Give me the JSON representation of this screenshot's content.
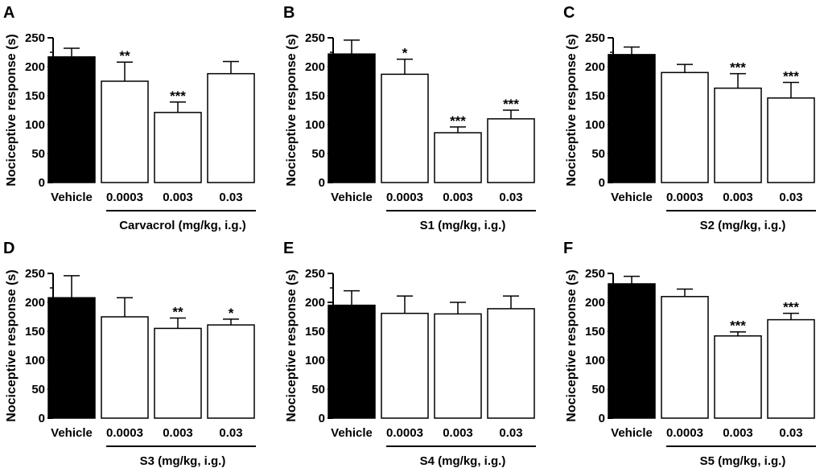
{
  "chart_data": [
    {
      "panel": "A",
      "type": "bar",
      "ylabel": "Nociceptive response (s)",
      "ylim": [
        0,
        250
      ],
      "yticks": [
        0,
        50,
        100,
        150,
        200,
        250
      ],
      "categories": [
        "Vehicle",
        "0.0003",
        "0.003",
        "0.03"
      ],
      "values": [
        217,
        175,
        121,
        188
      ],
      "errors": [
        15,
        33,
        18,
        21
      ],
      "significance": [
        "",
        "**",
        "***",
        ""
      ],
      "fills": [
        "#000000",
        "#ffffff",
        "#ffffff",
        "#ffffff"
      ],
      "group_label": "Carvacrol (mg/kg, i.g.)"
    },
    {
      "panel": "B",
      "type": "bar",
      "ylabel": "Nociceptive response (s)",
      "ylim": [
        0,
        250
      ],
      "yticks": [
        0,
        50,
        100,
        150,
        200,
        250
      ],
      "categories": [
        "Vehicle",
        "0.0003",
        "0.003",
        "0.03"
      ],
      "values": [
        222,
        187,
        86,
        110
      ],
      "errors": [
        24,
        26,
        10,
        15
      ],
      "significance": [
        "",
        "*",
        "***",
        "***"
      ],
      "fills": [
        "#000000",
        "#ffffff",
        "#ffffff",
        "#ffffff"
      ],
      "group_label": "S1 (mg/kg, i.g.)"
    },
    {
      "panel": "C",
      "type": "bar",
      "ylabel": "Nociceptive response (s)",
      "ylim": [
        0,
        250
      ],
      "yticks": [
        0,
        50,
        100,
        150,
        200,
        250
      ],
      "categories": [
        "Vehicle",
        "0.0003",
        "0.003",
        "0.03"
      ],
      "values": [
        221,
        190,
        163,
        146
      ],
      "errors": [
        13,
        14,
        25,
        27
      ],
      "significance": [
        "",
        "",
        "***",
        "***"
      ],
      "fills": [
        "#000000",
        "#ffffff",
        "#ffffff",
        "#ffffff"
      ],
      "group_label": "S2 (mg/kg, i.g.)"
    },
    {
      "panel": "D",
      "type": "bar",
      "ylabel": "Nociceptive response (s)",
      "ylim": [
        0,
        250
      ],
      "yticks": [
        0,
        50,
        100,
        150,
        200,
        250
      ],
      "categories": [
        "Vehicle",
        "0.0003",
        "0.003",
        "0.03"
      ],
      "values": [
        208,
        175,
        155,
        161
      ],
      "errors": [
        38,
        33,
        18,
        10
      ],
      "significance": [
        "",
        "",
        "**",
        "*"
      ],
      "fills": [
        "#000000",
        "#ffffff",
        "#ffffff",
        "#ffffff"
      ],
      "group_label": "S3 (mg/kg, i.g.)"
    },
    {
      "panel": "E",
      "type": "bar",
      "ylabel": "Nociceptive response (s)",
      "ylim": [
        0,
        250
      ],
      "yticks": [
        0,
        50,
        100,
        150,
        200,
        250
      ],
      "categories": [
        "Vehicle",
        "0.0003",
        "0.003",
        "0.03"
      ],
      "values": [
        195,
        181,
        180,
        189
      ],
      "errors": [
        25,
        30,
        20,
        22
      ],
      "significance": [
        "",
        "",
        "",
        ""
      ],
      "fills": [
        "#000000",
        "#ffffff",
        "#ffffff",
        "#ffffff"
      ],
      "group_label": "S4 (mg/kg, i.g.)"
    },
    {
      "panel": "F",
      "type": "bar",
      "ylabel": "Nociceptive response (s)",
      "ylim": [
        0,
        250
      ],
      "yticks": [
        0,
        50,
        100,
        150,
        200,
        250
      ],
      "categories": [
        "Vehicle",
        "0.0003",
        "0.003",
        "0.03"
      ],
      "values": [
        232,
        210,
        142,
        170
      ],
      "errors": [
        13,
        13,
        7,
        11
      ],
      "significance": [
        "",
        "",
        "***",
        "***"
      ],
      "fills": [
        "#000000",
        "#ffffff",
        "#ffffff",
        "#ffffff"
      ],
      "group_label": "S5 (mg/kg, i.g.)"
    }
  ]
}
